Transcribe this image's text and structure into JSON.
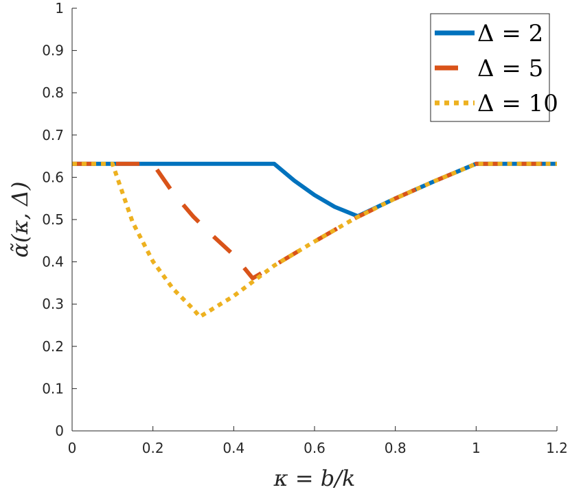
{
  "chart_data": {
    "type": "line",
    "title": "",
    "xlabel": "κ = b/k",
    "ylabel": "α̃(κ, Δ)",
    "xlim": [
      0,
      1.2
    ],
    "ylim": [
      0,
      1
    ],
    "x_ticks": [
      "0",
      "0.2",
      "0.4",
      "0.6",
      "0.8",
      "1",
      "1.2"
    ],
    "y_ticks": [
      "0",
      "0.1",
      "0.2",
      "0.3",
      "0.4",
      "0.5",
      "0.6",
      "0.7",
      "0.8",
      "0.9",
      "1"
    ],
    "grid": false,
    "legend_position": "top-right",
    "series": [
      {
        "name": "Δ = 2",
        "color": "#0072BD",
        "style": "solid",
        "x": [
          0,
          0.5,
          0.55,
          0.6,
          0.65,
          0.707,
          0.8,
          0.9,
          1.0,
          1.2
        ],
        "y": [
          0.632,
          0.632,
          0.592,
          0.558,
          0.53,
          0.508,
          0.55,
          0.592,
          0.632,
          0.632
        ]
      },
      {
        "name": "Δ = 5",
        "color": "#D95319",
        "style": "dashed",
        "x": [
          0,
          0.2,
          0.25,
          0.3,
          0.35,
          0.4,
          0.447,
          0.5,
          0.6,
          0.7,
          0.8,
          0.9,
          1.0,
          1.2
        ],
        "y": [
          0.632,
          0.632,
          0.563,
          0.507,
          0.46,
          0.416,
          0.361,
          0.391,
          0.448,
          0.503,
          0.55,
          0.592,
          0.632,
          0.632
        ]
      },
      {
        "name": "Δ = 10",
        "color": "#EDB120",
        "style": "dotted",
        "x": [
          0,
          0.1,
          0.15,
          0.2,
          0.25,
          0.3,
          0.316,
          0.4,
          0.5,
          0.6,
          0.7,
          0.8,
          0.9,
          1.0,
          1.2
        ],
        "y": [
          0.632,
          0.632,
          0.493,
          0.401,
          0.336,
          0.288,
          0.27,
          0.319,
          0.391,
          0.448,
          0.503,
          0.55,
          0.592,
          0.632,
          0.632
        ]
      }
    ]
  }
}
